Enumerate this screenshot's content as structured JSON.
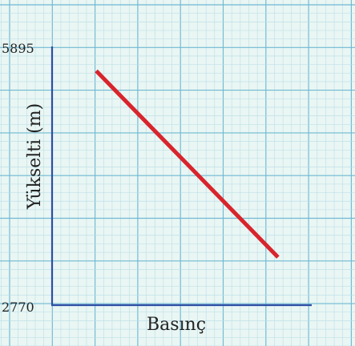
{
  "chart_data": {
    "type": "line",
    "title": "",
    "xlabel": "Basınç",
    "ylabel": "Yükselti (m)",
    "yticks": [
      {
        "value": 5895,
        "label": "5895"
      },
      {
        "value": 2770,
        "label": "2770"
      }
    ],
    "ylim": [
      2770,
      5895
    ],
    "xlim": [
      0,
      1
    ],
    "grid": true,
    "legend": "none",
    "series": [
      {
        "color": "#d8242c",
        "points": [
          {
            "x": 0.17,
            "y": 5600
          },
          {
            "x": 0.87,
            "y": 3350
          }
        ]
      }
    ]
  },
  "colors": {
    "axis": "#2e4ea4",
    "series": "#d8242c",
    "grid_major": "#6fb9d3",
    "grid_minor": "#b8dce8",
    "background": "#e9f6f3"
  }
}
